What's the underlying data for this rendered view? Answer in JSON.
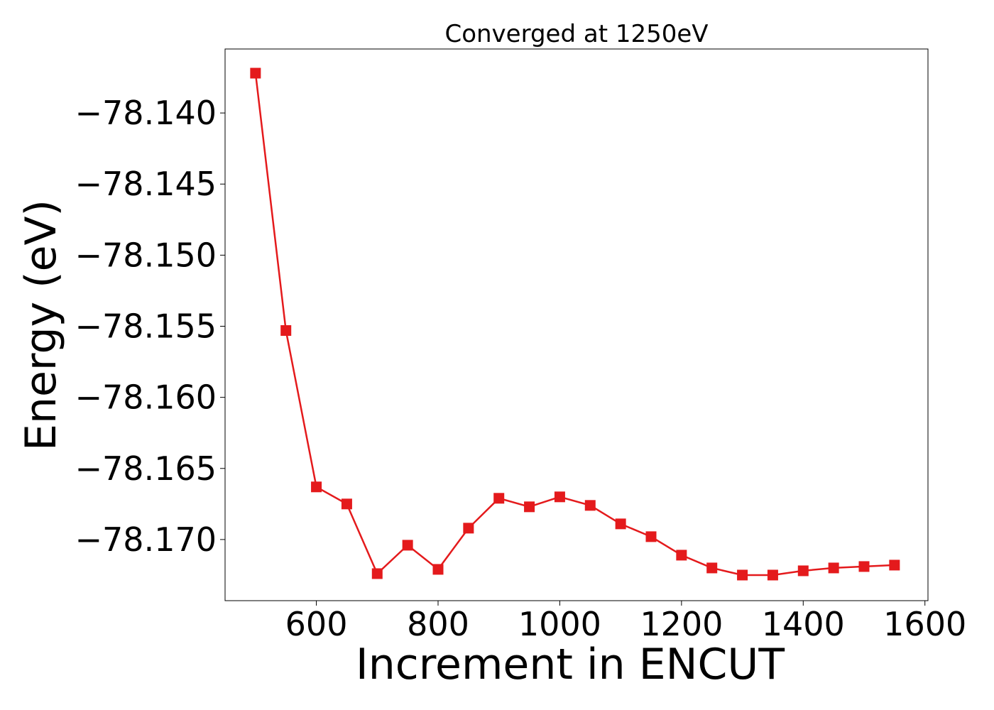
{
  "chart_data": {
    "type": "line",
    "title": "Converged at 1250eV",
    "xlabel": "Increment in ENCUT",
    "ylabel": "Energy (eV)",
    "xlim": [
      450,
      1605
    ],
    "ylim": [
      -78.1743,
      -78.1355
    ],
    "x_ticks": [
      600,
      800,
      1000,
      1200,
      1400,
      1600
    ],
    "x_tick_labels": [
      "600",
      "800",
      "1000",
      "1200",
      "1400",
      "1600"
    ],
    "y_ticks": [
      -78.14,
      -78.145,
      -78.15,
      -78.155,
      -78.16,
      -78.165,
      -78.17
    ],
    "y_tick_labels": [
      "−78.140",
      "−78.145",
      "−78.150",
      "−78.155",
      "−78.160",
      "−78.165",
      "−78.170"
    ],
    "grid": false,
    "series": [
      {
        "color": "#e41a1c",
        "marker": "square",
        "x": [
          500,
          550,
          600,
          650,
          700,
          750,
          800,
          850,
          900,
          950,
          1000,
          1050,
          1100,
          1150,
          1200,
          1250,
          1300,
          1350,
          1400,
          1450,
          1500,
          1550
        ],
        "y": [
          -78.1372,
          -78.1553,
          -78.1663,
          -78.1675,
          -78.1724,
          -78.1704,
          -78.1721,
          -78.1692,
          -78.1671,
          -78.1677,
          -78.167,
          -78.1676,
          -78.1689,
          -78.1698,
          -78.1711,
          -78.172,
          -78.1725,
          -78.1725,
          -78.1722,
          -78.172,
          -78.1719,
          -78.1718
        ]
      }
    ]
  }
}
